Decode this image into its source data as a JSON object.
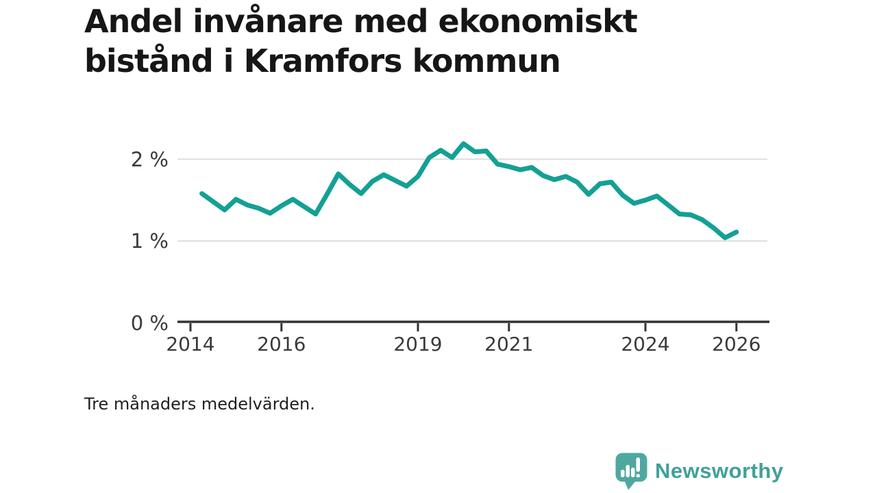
{
  "header": {
    "title": "Andel invånare med ekonomiskt bistånd i Kramfors kommun"
  },
  "footnote": {
    "text": "Tre månaders medelvärden."
  },
  "branding": {
    "logo_text": "Newsworthy",
    "logo_icon": "bar-chart-speech-bubble-icon",
    "brand_color": "#4FA8A0",
    "brand_text_color": "#40A099"
  },
  "chart_data": {
    "type": "line",
    "title": "Andel invånare med ekonomiskt bistånd i Kramfors kommun",
    "subtitle": "Tre månaders medelvärden.",
    "x_unit": "year (quarterly points, three-month averages)",
    "y_unit": "percent of inhabitants",
    "xlabel": "",
    "ylabel": "",
    "legend": "none",
    "grid": "horizontal gridlines at 1 % and 2 %",
    "xlim": [
      2013.71,
      2026.72
    ],
    "ylim": [
      0,
      2.24
    ],
    "line_color": "#14A095",
    "axis_color": "#333333",
    "grid_color": "#DDDDDD",
    "x_ticks": [
      {
        "value": 2014,
        "label": "2014"
      },
      {
        "value": 2016,
        "label": "2016"
      },
      {
        "value": 2019,
        "label": "2019"
      },
      {
        "value": 2021,
        "label": "2021"
      },
      {
        "value": 2024,
        "label": "2024"
      },
      {
        "value": 2026,
        "label": "2026"
      }
    ],
    "y_ticks": [
      {
        "value": 0,
        "label": "0 %"
      },
      {
        "value": 1,
        "label": "1 %"
      },
      {
        "value": 2,
        "label": "2 %"
      }
    ],
    "series": [
      {
        "name": "Andel invånare med ekonomiskt bistånd",
        "x": [
          2014.25,
          2014.5,
          2014.75,
          2015,
          2015.25,
          2015.5,
          2015.75,
          2016,
          2016.25,
          2016.5,
          2016.75,
          2017,
          2017.25,
          2017.5,
          2017.75,
          2018,
          2018.25,
          2018.5,
          2018.75,
          2019,
          2019.25,
          2019.5,
          2019.75,
          2020,
          2020.25,
          2020.5,
          2020.75,
          2021,
          2021.25,
          2021.5,
          2021.75,
          2022,
          2022.25,
          2022.5,
          2022.75,
          2023,
          2023.25,
          2023.5,
          2023.75,
          2024,
          2024.25,
          2024.5,
          2024.75,
          2025,
          2025.25,
          2025.5,
          2025.75,
          2026
        ],
        "values": [
          1.58,
          1.48,
          1.38,
          1.51,
          1.44,
          1.4,
          1.34,
          1.43,
          1.51,
          1.42,
          1.33,
          1.57,
          1.82,
          1.69,
          1.58,
          1.73,
          1.81,
          1.74,
          1.67,
          1.79,
          2.02,
          2.11,
          2.02,
          2.19,
          2.09,
          2.1,
          1.94,
          1.91,
          1.87,
          1.9,
          1.8,
          1.75,
          1.79,
          1.72,
          1.57,
          1.7,
          1.72,
          1.56,
          1.46,
          1.5,
          1.55,
          1.44,
          1.33,
          1.32,
          1.26,
          1.16,
          1.04,
          1.11
        ]
      }
    ]
  }
}
